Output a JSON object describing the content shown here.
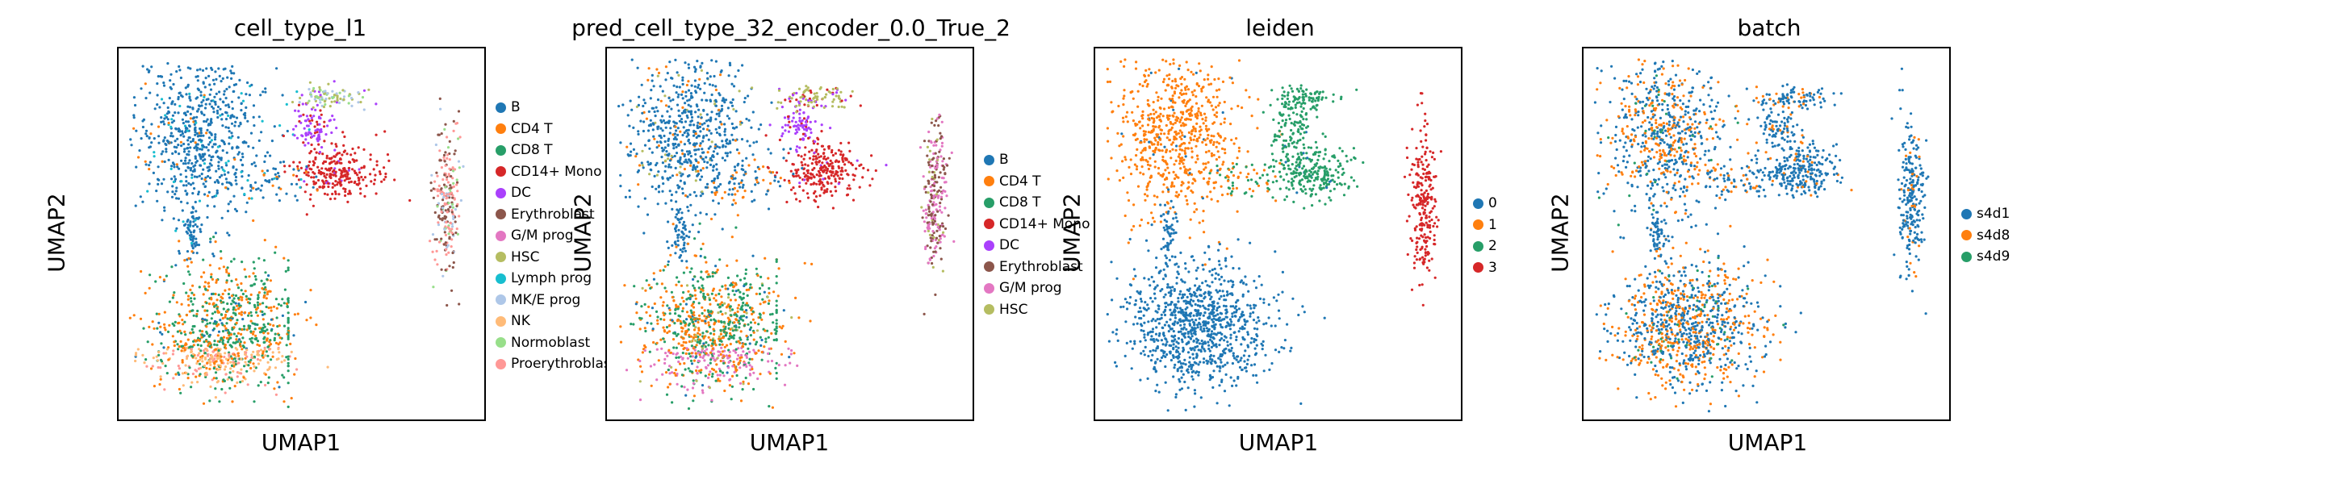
{
  "chart_data": [
    {
      "type": "scatter",
      "title": "cell_type_l1",
      "xlabel": "UMAP1",
      "ylabel": "UMAP2",
      "grid": false,
      "legend_position": "right",
      "legend": [
        {
          "name": "B",
          "color": "#1f77b4"
        },
        {
          "name": "CD4 T",
          "color": "#ff7f0e"
        },
        {
          "name": "CD8 T",
          "color": "#279e68"
        },
        {
          "name": "CD14+ Mono",
          "color": "#d62728"
        },
        {
          "name": "DC",
          "color": "#aa40fc"
        },
        {
          "name": "Erythroblast",
          "color": "#8c564b"
        },
        {
          "name": "G/M prog",
          "color": "#e377c2"
        },
        {
          "name": "HSC",
          "color": "#b5bd61"
        },
        {
          "name": "Lymph prog",
          "color": "#17becf"
        },
        {
          "name": "MK/E prog",
          "color": "#aec7e8"
        },
        {
          "name": "NK",
          "color": "#ffbb78"
        },
        {
          "name": "Normoblast",
          "color": "#98df8a"
        },
        {
          "name": "Proerythroblast",
          "color": "#ff9896"
        }
      ]
    },
    {
      "type": "scatter",
      "title": "pred_cell_type_32_encoder_0.0_True_2",
      "xlabel": "UMAP1",
      "ylabel": "UMAP2",
      "grid": false,
      "legend_position": "right",
      "legend": [
        {
          "name": "B",
          "color": "#1f77b4"
        },
        {
          "name": "CD4 T",
          "color": "#ff7f0e"
        },
        {
          "name": "CD8 T",
          "color": "#279e68"
        },
        {
          "name": "CD14+ Mono",
          "color": "#d62728"
        },
        {
          "name": "DC",
          "color": "#aa40fc"
        },
        {
          "name": "Erythroblast",
          "color": "#8c564b"
        },
        {
          "name": "G/M prog",
          "color": "#e377c2"
        },
        {
          "name": "HSC",
          "color": "#b5bd61"
        }
      ]
    },
    {
      "type": "scatter",
      "title": "leiden",
      "xlabel": "UMAP1",
      "ylabel": "UMAP2",
      "grid": false,
      "legend_position": "right",
      "legend": [
        {
          "name": "0",
          "color": "#1f77b4"
        },
        {
          "name": "1",
          "color": "#ff7f0e"
        },
        {
          "name": "2",
          "color": "#279e68"
        },
        {
          "name": "3",
          "color": "#d62728"
        }
      ]
    },
    {
      "type": "scatter",
      "title": "batch",
      "xlabel": "UMAP1",
      "ylabel": "UMAP2",
      "grid": false,
      "legend_position": "right",
      "legend": [
        {
          "name": "s4d1",
          "color": "#1f77b4"
        },
        {
          "name": "s4d8",
          "color": "#ff7f0e"
        },
        {
          "name": "s4d9",
          "color": "#279e68"
        }
      ]
    }
  ]
}
